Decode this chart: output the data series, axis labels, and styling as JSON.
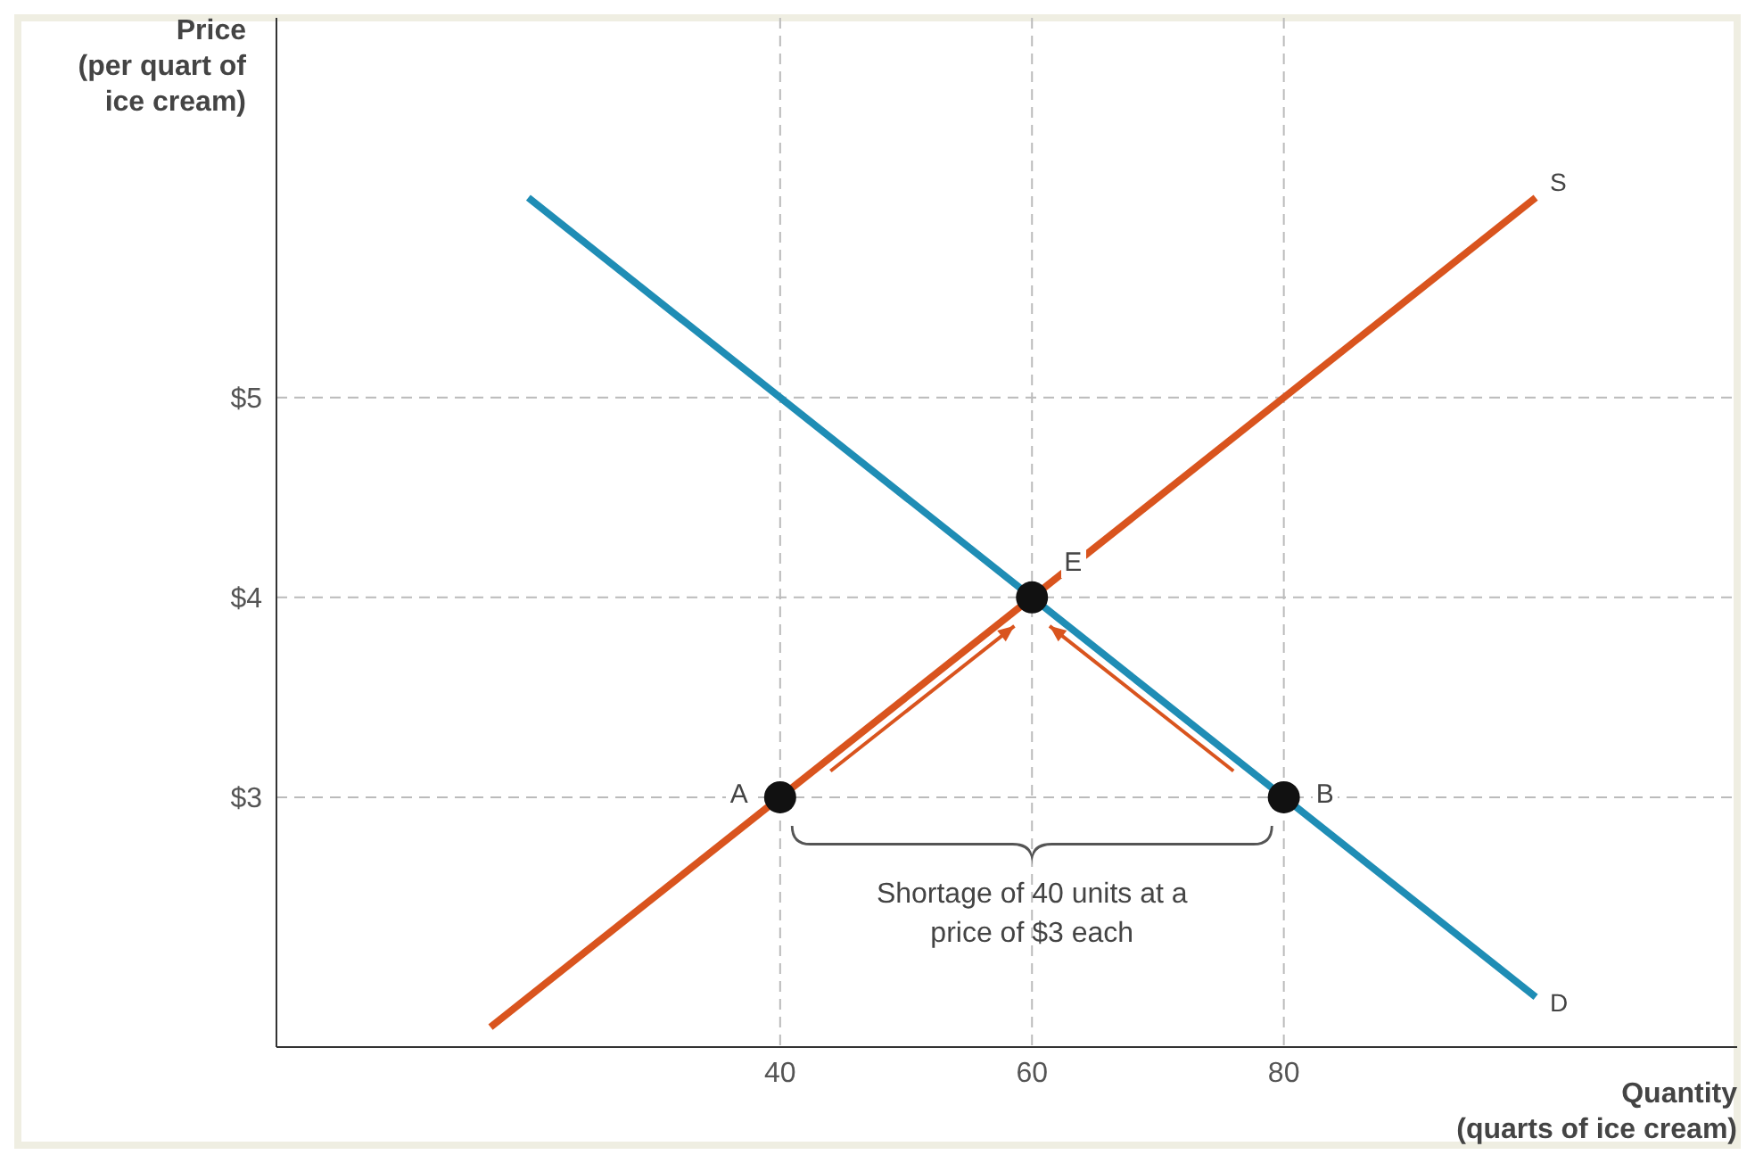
{
  "chart_data": {
    "type": "line",
    "xlabel": "Quantity\n(quarts of ice cream)",
    "ylabel": "Price\n(per quart of\nice cream)",
    "xlim": [
      0,
      116
    ],
    "ylim": [
      1.75,
      6.9
    ],
    "xticks": [
      40,
      60,
      80
    ],
    "yticks": [
      {
        "value": 3,
        "label": "$3"
      },
      {
        "value": 4,
        "label": "$4"
      },
      {
        "value": 5,
        "label": "$5"
      }
    ],
    "grid": true,
    "series": [
      {
        "name": "S",
        "color": "#d9541e",
        "x": [
          17,
          100
        ],
        "values": [
          1.85,
          6
        ]
      },
      {
        "name": "D",
        "color": "#1f8db5",
        "x": [
          20,
          100
        ],
        "values": [
          6,
          2
        ]
      },
      {
        "type": "scatter",
        "color": "#111111",
        "marker": "circle",
        "x": [
          40,
          60,
          80
        ],
        "values": [
          3,
          4,
          3
        ]
      }
    ],
    "annotations": [
      {
        "text": "A",
        "x": 40,
        "y": 3
      },
      {
        "text": "E",
        "x": 60,
        "y": 4
      },
      {
        "text": "B",
        "x": 80,
        "y": 3
      },
      "Shortage of 40 units at a price of $3 each"
    ]
  }
}
